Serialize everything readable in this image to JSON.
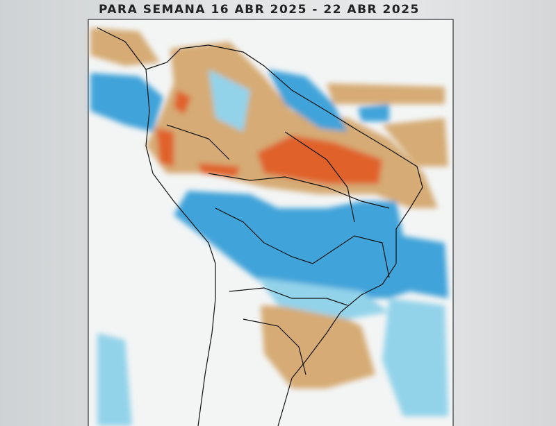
{
  "title": "PARA SEMANA 16 ABR 2025 - 22 ABR 2025",
  "map": {
    "region": "South America",
    "type": "anomaly map",
    "colors": {
      "dry_strong": "#e0622c",
      "dry": "#d6ab74",
      "wet": "#3fa3d9",
      "wet_light": "#93d3ea",
      "background": "#f4f6f6",
      "borders": "#111111"
    }
  }
}
